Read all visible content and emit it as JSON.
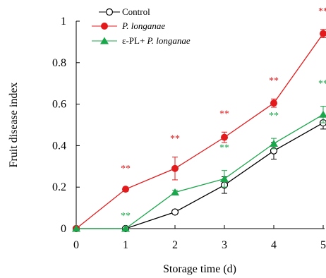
{
  "chart_data": {
    "type": "line",
    "title": "",
    "xlabel": "Storage time (d)",
    "ylabel": "Fruit disease index",
    "x": [
      0,
      1,
      2,
      3,
      4,
      5
    ],
    "xticks": [
      "0",
      "1",
      "2",
      "3",
      "4",
      "5"
    ],
    "yticks": [
      "0",
      "0.2",
      "0.4",
      "0.6",
      "0.8",
      "1"
    ],
    "xlim": [
      0,
      5
    ],
    "ylim": [
      0,
      1
    ],
    "grid": false,
    "legend_position": "top-left",
    "series": [
      {
        "name": "Control",
        "color": "#000000",
        "marker": "circle-open",
        "values": [
          0,
          0,
          0.08,
          0.21,
          0.375,
          0.51
        ],
        "errors": [
          0,
          0,
          0.01,
          0.04,
          0.04,
          0.03
        ],
        "annotations": [
          "",
          "",
          "",
          "",
          "",
          ""
        ]
      },
      {
        "name": "P. longanae",
        "name_italic": true,
        "color": "#e31a1c",
        "marker": "circle-filled",
        "values": [
          0,
          0.19,
          0.29,
          0.44,
          0.605,
          0.94
        ],
        "errors": [
          0,
          0.01,
          0.055,
          0.025,
          0.02,
          0.02
        ],
        "annotations": [
          "",
          "**",
          "**",
          "**",
          "**",
          "**"
        ]
      },
      {
        "name_prefix": "ε-PL+ ",
        "name_suffix": "P. longanae",
        "name": "ε-PL+ P. longanae",
        "color": "#1aa64a",
        "marker": "triangle-filled",
        "values": [
          0,
          0,
          0.175,
          0.24,
          0.41,
          0.55
        ],
        "errors": [
          0,
          0,
          0.01,
          0.04,
          0.025,
          0.04
        ],
        "annotations": [
          "",
          "**",
          "",
          "**",
          "**",
          "**"
        ]
      }
    ]
  }
}
